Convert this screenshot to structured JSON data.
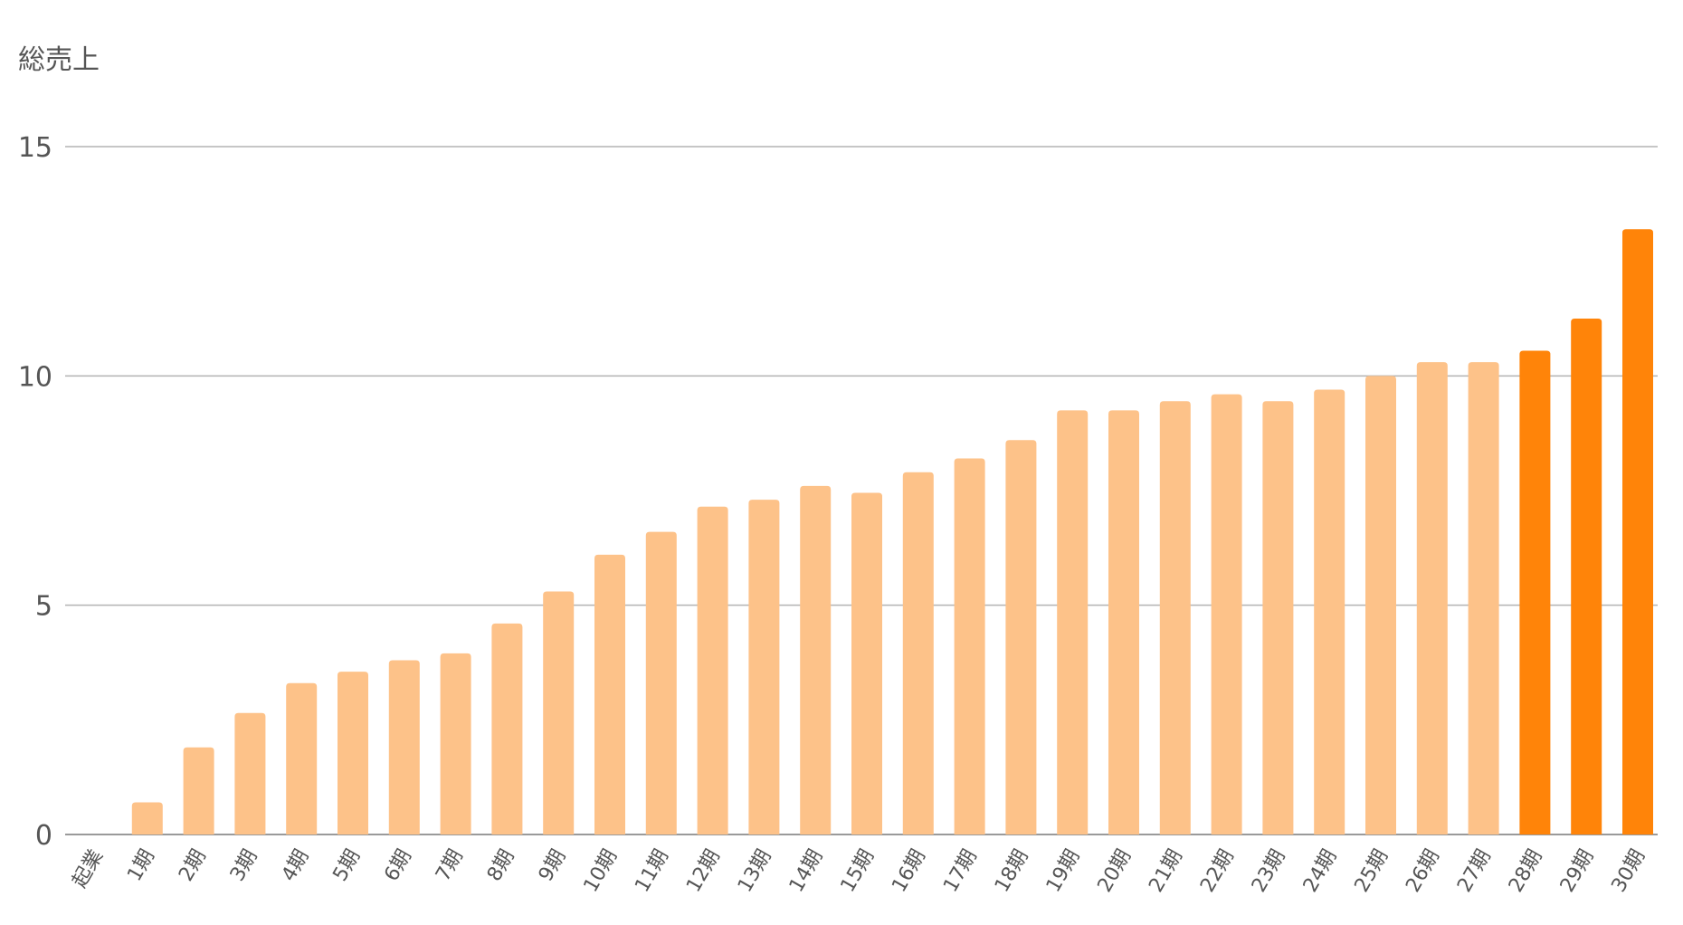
{
  "chart_data": {
    "type": "bar",
    "ylabel": "総売上",
    "ylim": [
      0,
      15
    ],
    "yticks": [
      0,
      5,
      10,
      15
    ],
    "grid": true,
    "categories": [
      "起業",
      "1期",
      "2期",
      "3期",
      "4期",
      "5期",
      "6期",
      "7期",
      "8期",
      "9期",
      "10期",
      "11期",
      "12期",
      "13期",
      "14期",
      "15期",
      "16期",
      "17期",
      "18期",
      "19期",
      "20期",
      "21期",
      "22期",
      "23期",
      "24期",
      "25期",
      "26期",
      "27期",
      "28期",
      "29期",
      "30期"
    ],
    "values": [
      0,
      0.7,
      1.9,
      2.65,
      3.3,
      3.55,
      3.8,
      3.95,
      4.6,
      5.3,
      6.1,
      6.6,
      7.15,
      7.3,
      7.6,
      7.45,
      7.9,
      8.2,
      8.6,
      9.25,
      9.25,
      9.45,
      9.6,
      9.45,
      9.7,
      10.0,
      10.3,
      10.3,
      10.55,
      11.25,
      13.2
    ],
    "colors": {
      "normal": "#fdc289",
      "highlight": "#ff8409"
    },
    "highlight_from_index": 28
  }
}
